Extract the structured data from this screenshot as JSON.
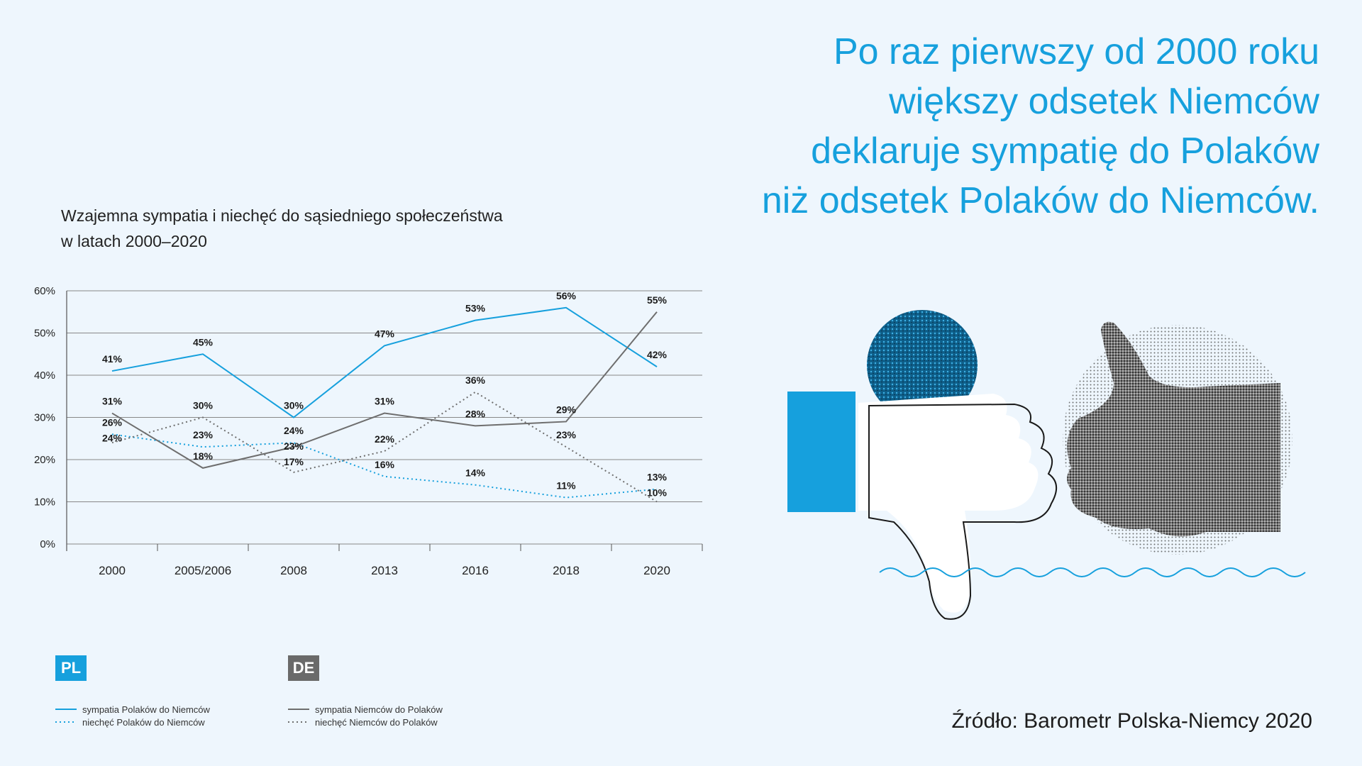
{
  "headline": {
    "lines": [
      "Po raz pierwszy od 2000 roku",
      "większy odsetek Niemców",
      "deklaruje sympatię do Polaków",
      "niż odsetek Polaków do Niemców."
    ]
  },
  "chart_title": {
    "line1": "Wzajemna sympatia i niechęć do sąsiedniego społeczeństwa",
    "line2": "w latach 2000–2020"
  },
  "chart_data": {
    "type": "line",
    "categories": [
      "2000",
      "2005/2006",
      "2008",
      "2013",
      "2016",
      "2018",
      "2020"
    ],
    "ylim": [
      0,
      60
    ],
    "yticks": [
      "0%",
      "10%",
      "20%",
      "30%",
      "40%",
      "50%",
      "60%"
    ],
    "series": [
      {
        "name": "sympatia Polaków do Niemców",
        "group": "PL",
        "color": "#16a0dd",
        "dash": "solid",
        "values": [
          41,
          45,
          30,
          47,
          53,
          56,
          42
        ],
        "labels": [
          "41%",
          "45%",
          "30%",
          "47%",
          "53%",
          "56%",
          "42%"
        ]
      },
      {
        "name": "niechęć Polaków do Niemców",
        "group": "PL",
        "color": "#16a0dd",
        "dash": "dotted",
        "values": [
          26,
          23,
          24,
          16,
          14,
          11,
          13
        ],
        "labels": [
          "26%",
          "23%",
          "24%",
          "16%",
          "14%",
          "11%",
          "13%"
        ]
      },
      {
        "name": "sympatia Niemców do Polaków",
        "group": "DE",
        "color": "#6e6e6e",
        "dash": "solid",
        "values": [
          31,
          18,
          23,
          31,
          28,
          29,
          55
        ],
        "labels": [
          "31%",
          "18%",
          "23%",
          "31%",
          "28%",
          "29%",
          "55%"
        ]
      },
      {
        "name": "niechęć Niemców do Polaków",
        "group": "DE",
        "color": "#6e6e6e",
        "dash": "dotted",
        "values": [
          24,
          30,
          17,
          22,
          36,
          23,
          10
        ],
        "labels": [
          "24%",
          "30%",
          "17%",
          "22%",
          "36%",
          "23%",
          "10%"
        ]
      }
    ]
  },
  "legend": {
    "pl": {
      "badge": "PL",
      "color": "#16a0dd",
      "items": [
        "sympatia Polaków do Niemców",
        "niechęć Polaków do Niemców"
      ]
    },
    "de": {
      "badge": "DE",
      "color": "#6a6a6a",
      "items": [
        "sympatia Niemców do Polaków",
        "niechęć Niemców do Polaków"
      ]
    }
  },
  "source": "Źródło: Barometr Polska-Niemcy 2020",
  "icons": [
    "thumbs-down-icon",
    "thumbs-up-icon",
    "blue-circle-icon",
    "wave-line-icon"
  ],
  "colors": {
    "accent": "#16a0dd",
    "grey": "#6e6e6e",
    "background": "#eef6fd"
  }
}
